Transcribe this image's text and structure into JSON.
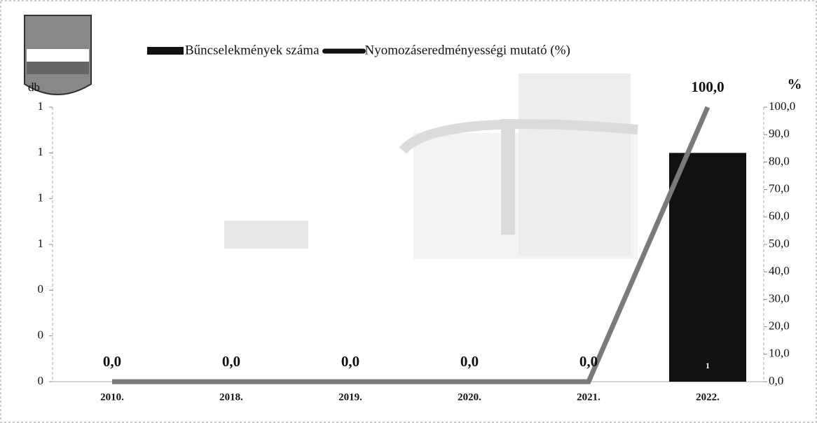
{
  "chart_data": {
    "type": "bar",
    "categories": [
      "2010.",
      "2018.",
      "2019.",
      "2020.",
      "2021.",
      "2022."
    ],
    "series": [
      {
        "name": "Bűncselekmények száma",
        "type": "bar",
        "color": "#111111",
        "values": [
          0,
          0,
          0,
          0,
          0,
          1
        ],
        "value_labels": [
          null,
          null,
          null,
          null,
          null,
          "1"
        ]
      },
      {
        "name": "Nyomozáseredményességi mutató (%)",
        "type": "line",
        "axis": "y2",
        "color": "#7a7a7a",
        "values": [
          0,
          0,
          0,
          0,
          0,
          100
        ],
        "value_labels": [
          "0,0",
          "0,0",
          "0,0",
          "0,0",
          "0,0",
          "100,0"
        ]
      }
    ],
    "ylabel": "db",
    "y2label": "%",
    "ylim": [
      0,
      1.2
    ],
    "yticks": [
      0,
      {
        "value": 0.2,
        "label": "0"
      },
      {
        "value": 0.4,
        "label": "0"
      },
      {
        "value": 0.6,
        "label": "1"
      },
      {
        "value": 0.8,
        "label": "1"
      },
      1,
      {
        "value": 1.2,
        "label": "1"
      }
    ],
    "y2lim": [
      0,
      100
    ],
    "y2ticks": [
      {
        "value": 0,
        "label": "0,0"
      },
      {
        "value": 10,
        "label": "10,0"
      },
      {
        "value": 20,
        "label": "20,0"
      },
      {
        "value": 30,
        "label": "30,0"
      },
      {
        "value": 40,
        "label": "40,0"
      },
      {
        "value": 50,
        "label": "50,0"
      },
      {
        "value": 60,
        "label": "60,0"
      },
      {
        "value": 70,
        "label": "70,0"
      },
      {
        "value": 80,
        "label": "80,0"
      },
      {
        "value": 90,
        "label": "90,0"
      },
      {
        "value": 100,
        "label": "100,0"
      }
    ],
    "grid": false,
    "legend": "top"
  }
}
